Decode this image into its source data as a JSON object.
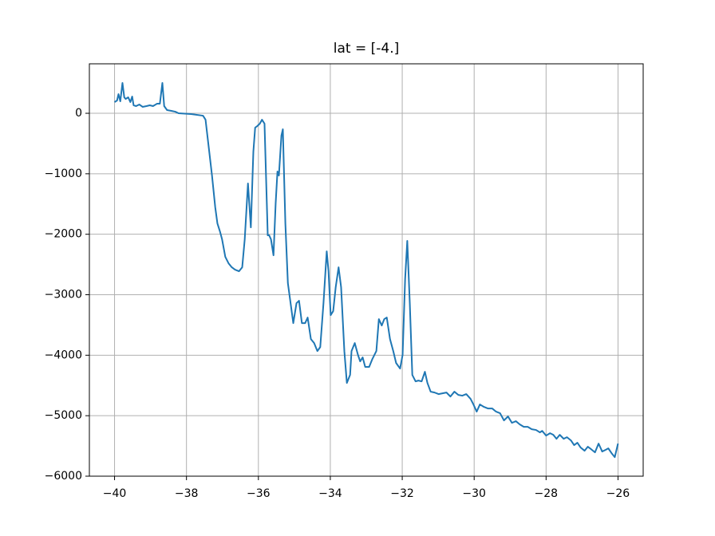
{
  "chart_data": {
    "type": "line",
    "title": "lat = [-4.]",
    "x": [
      -40.0,
      -39.93,
      -39.89,
      -39.84,
      -39.78,
      -39.73,
      -39.69,
      -39.62,
      -39.56,
      -39.51,
      -39.47,
      -39.4,
      -39.31,
      -39.22,
      -39.11,
      -39.02,
      -38.93,
      -38.82,
      -38.74,
      -38.67,
      -38.62,
      -38.54,
      -38.42,
      -38.31,
      -38.22,
      -37.87,
      -37.54,
      -37.47,
      -37.38,
      -37.29,
      -37.2,
      -37.14,
      -37.07,
      -37.01,
      -36.92,
      -36.83,
      -36.74,
      -36.65,
      -36.54,
      -36.45,
      -36.38,
      -36.29,
      -36.21,
      -36.14,
      -36.09,
      -36.03,
      -35.96,
      -35.9,
      -35.83,
      -35.74,
      -35.7,
      -35.65,
      -35.58,
      -35.52,
      -35.47,
      -35.43,
      -35.36,
      -35.32,
      -35.25,
      -35.18,
      -35.12,
      -35.03,
      -34.94,
      -34.87,
      -34.79,
      -34.7,
      -34.63,
      -34.54,
      -34.45,
      -34.36,
      -34.28,
      -34.19,
      -34.1,
      -34.05,
      -33.99,
      -33.92,
      -33.85,
      -33.77,
      -33.7,
      -33.61,
      -33.54,
      -33.45,
      -33.41,
      -33.32,
      -33.23,
      -33.17,
      -33.1,
      -33.03,
      -32.92,
      -32.83,
      -32.72,
      -32.65,
      -32.57,
      -32.5,
      -32.43,
      -32.34,
      -32.25,
      -32.17,
      -32.06,
      -31.99,
      -31.92,
      -31.86,
      -31.79,
      -31.72,
      -31.63,
      -31.55,
      -31.46,
      -31.37,
      -31.3,
      -31.21,
      -31.1,
      -30.99,
      -30.88,
      -30.77,
      -30.66,
      -30.55,
      -30.44,
      -30.33,
      -30.22,
      -30.1,
      -30.02,
      -29.93,
      -29.84,
      -29.73,
      -29.62,
      -29.5,
      -29.39,
      -29.28,
      -29.17,
      -29.06,
      -28.95,
      -28.84,
      -28.73,
      -28.62,
      -28.51,
      -28.4,
      -28.28,
      -28.17,
      -28.11,
      -28.0,
      -27.89,
      -27.8,
      -27.71,
      -27.62,
      -27.51,
      -27.42,
      -27.31,
      -27.22,
      -27.13,
      -27.04,
      -26.93,
      -26.84,
      -26.75,
      -26.64,
      -26.54,
      -26.44,
      -26.35,
      -26.27,
      -26.18,
      -26.09,
      -26.0
    ],
    "values": [
      185,
      211,
      317,
      198,
      501,
      264,
      237,
      264,
      185,
      277,
      132,
      119,
      145,
      106,
      119,
      132,
      119,
      158,
      158,
      501,
      119,
      53,
      40,
      26,
      0,
      -13,
      -40,
      -106,
      -567,
      -1029,
      -1556,
      -1820,
      -1952,
      -2084,
      -2374,
      -2480,
      -2546,
      -2585,
      -2612,
      -2546,
      -2084,
      -1161,
      -1886,
      -633,
      -237,
      -211,
      -171,
      -106,
      -171,
      -2018,
      -2018,
      -2084,
      -2348,
      -1490,
      -963,
      -1029,
      -369,
      -264,
      -1820,
      -2809,
      -3073,
      -3469,
      -3139,
      -3100,
      -3469,
      -3469,
      -3377,
      -3733,
      -3799,
      -3931,
      -3865,
      -3139,
      -2282,
      -2612,
      -3337,
      -3271,
      -2875,
      -2546,
      -2875,
      -3931,
      -4458,
      -4326,
      -3931,
      -3799,
      -3997,
      -4102,
      -4036,
      -4194,
      -4194,
      -4062,
      -3931,
      -3403,
      -3509,
      -3403,
      -3377,
      -3733,
      -3931,
      -4129,
      -4221,
      -3997,
      -2744,
      -2110,
      -3139,
      -4326,
      -4432,
      -4419,
      -4432,
      -4274,
      -4458,
      -4603,
      -4617,
      -4643,
      -4630,
      -4617,
      -4683,
      -4603,
      -4656,
      -4669,
      -4643,
      -4722,
      -4814,
      -4933,
      -4814,
      -4854,
      -4880,
      -4880,
      -4933,
      -4959,
      -5078,
      -5012,
      -5118,
      -5091,
      -5144,
      -5184,
      -5184,
      -5223,
      -5236,
      -5276,
      -5250,
      -5329,
      -5289,
      -5316,
      -5382,
      -5316,
      -5382,
      -5355,
      -5408,
      -5487,
      -5447,
      -5526,
      -5579,
      -5513,
      -5553,
      -5606,
      -5461,
      -5592,
      -5566,
      -5540,
      -5619,
      -5685,
      -5461
    ],
    "color": "#1f77b4",
    "xlim": [
      -40.7,
      -25.3
    ],
    "ylim": [
      -6000,
      818
    ],
    "xticks": [
      {
        "value": -40,
        "label": "−40"
      },
      {
        "value": -38,
        "label": "−38"
      },
      {
        "value": -36,
        "label": "−36"
      },
      {
        "value": -34,
        "label": "−34"
      },
      {
        "value": -32,
        "label": "−32"
      },
      {
        "value": -30,
        "label": "−30"
      },
      {
        "value": -28,
        "label": "−28"
      },
      {
        "value": -26,
        "label": "−26"
      }
    ],
    "yticks": [
      {
        "value": -6000,
        "label": "−6000"
      },
      {
        "value": -5000,
        "label": "−5000"
      },
      {
        "value": -4000,
        "label": "−4000"
      },
      {
        "value": -3000,
        "label": "−3000"
      },
      {
        "value": -2000,
        "label": "−2000"
      },
      {
        "value": -1000,
        "label": "−1000"
      },
      0
    ],
    "grid": true
  }
}
